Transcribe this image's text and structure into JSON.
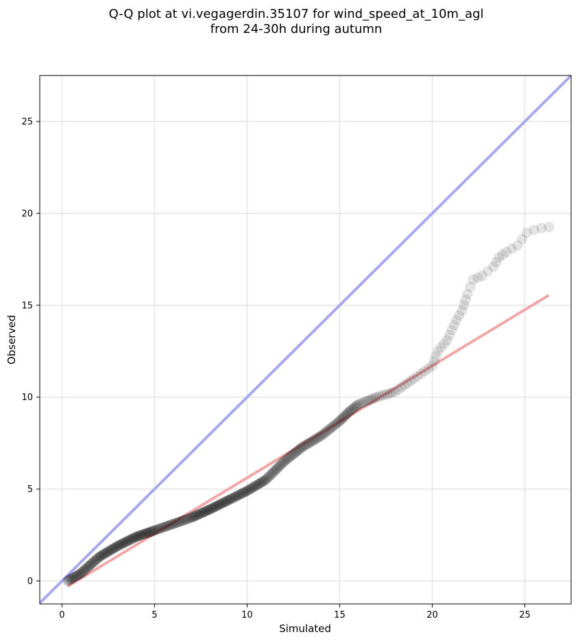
{
  "chart_data": {
    "type": "scatter",
    "title_lines": [
      "Q-Q plot at vi.vegagerdin.35107 for wind_speed_at_10m_agl",
      "from 24-30h during autumn"
    ],
    "xlabel": "Simulated",
    "ylabel": "Observed",
    "xlim": [
      -1.2,
      27.5
    ],
    "ylim": [
      -1.25,
      27.5
    ],
    "xticks": [
      0,
      5,
      10,
      15,
      20,
      25
    ],
    "yticks": [
      0,
      5,
      10,
      15,
      20,
      25
    ],
    "grid": true,
    "reference_line": {
      "name": "1:1",
      "from": [
        -1.2,
        -1.2
      ],
      "to": [
        27.5,
        27.5
      ],
      "color": "#a8a8f0"
    },
    "fit_line": {
      "from": [
        0.3,
        -0.3
      ],
      "to": [
        26.3,
        15.55
      ],
      "color": "#f2a6a6"
    },
    "marker_color": "#000000",
    "curve_knots": [
      [
        0.3,
        0.0
      ],
      [
        1.0,
        0.4
      ],
      [
        2.0,
        1.3
      ],
      [
        3.0,
        1.9
      ],
      [
        4.0,
        2.4
      ],
      [
        5.0,
        2.75
      ],
      [
        7.0,
        3.45
      ],
      [
        8.0,
        3.9
      ],
      [
        9.0,
        4.4
      ],
      [
        10.0,
        4.9
      ],
      [
        11.0,
        5.5
      ],
      [
        12.0,
        6.5
      ],
      [
        13.0,
        7.3
      ],
      [
        14.0,
        7.9
      ],
      [
        15.0,
        8.7
      ],
      [
        15.5,
        9.2
      ],
      [
        16.0,
        9.6
      ],
      [
        17.0,
        10.0
      ],
      [
        18.0,
        10.3
      ],
      [
        19.0,
        11.0
      ],
      [
        20.0,
        11.7
      ],
      [
        20.3,
        12.5
      ],
      [
        20.8,
        13.1
      ],
      [
        21.3,
        14.2
      ],
      [
        21.6,
        14.7
      ],
      [
        21.9,
        15.6
      ],
      [
        22.2,
        16.4
      ],
      [
        22.7,
        16.6
      ],
      [
        23.3,
        17.1
      ],
      [
        23.6,
        17.6
      ],
      [
        24.0,
        17.9
      ],
      [
        24.6,
        18.25
      ],
      [
        25.1,
        18.95
      ],
      [
        25.5,
        19.1
      ],
      [
        25.9,
        19.2
      ],
      [
        26.3,
        19.25
      ]
    ],
    "point_counts": [
      16,
      24,
      24,
      24,
      24,
      36,
      24,
      24,
      22,
      22,
      20,
      18,
      16,
      16,
      10,
      9,
      10,
      7,
      6,
      5,
      3,
      3,
      4,
      2,
      3,
      2,
      2,
      2,
      2,
      2,
      2,
      2,
      1,
      1,
      1
    ]
  }
}
